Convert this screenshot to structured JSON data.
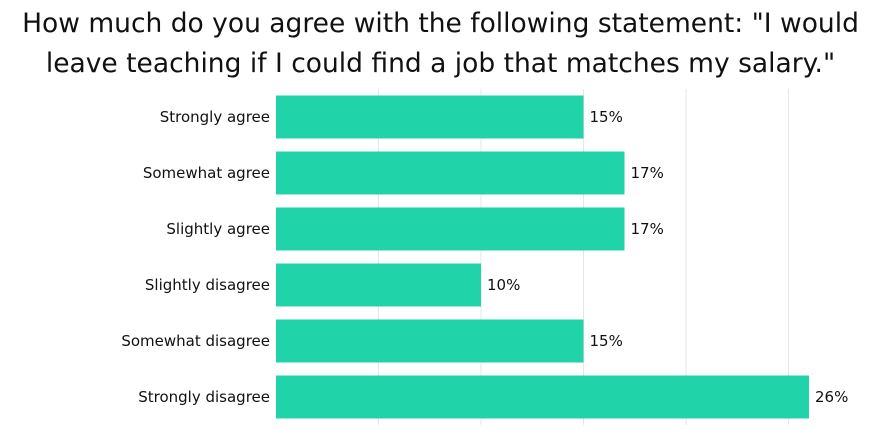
{
  "chart_data": {
    "type": "bar",
    "orientation": "horizontal",
    "title_lines": [
      "How much do you agree with the following statement: \"I would",
      "leave teaching if I could find a job that matches my salary.\""
    ],
    "categories": [
      "Strongly agree",
      "Somewhat agree",
      "Slightly agree",
      "Slightly disagree",
      "Somewhat disagree",
      "Strongly disagree"
    ],
    "values": [
      15,
      17,
      17,
      10,
      15,
      26
    ],
    "value_labels": [
      "15%",
      "17%",
      "17%",
      "10%",
      "15%",
      "26%"
    ],
    "unit": "%",
    "xlim": [
      0,
      26
    ],
    "grid": true,
    "legend": "none",
    "bar_color": "#21d3a8"
  }
}
